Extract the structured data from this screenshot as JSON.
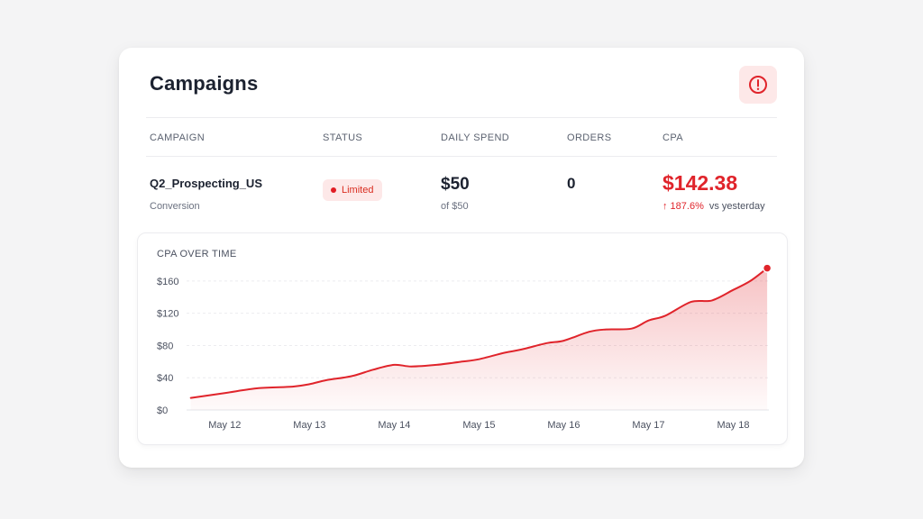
{
  "header": {
    "title": "Campaigns",
    "alert_icon": "alert-circle-icon",
    "alert_color": "#e0242b"
  },
  "table": {
    "columns": [
      "CAMPAIGN",
      "STATUS",
      "DAILY SPEND",
      "ORDERS",
      "CPA"
    ],
    "row": {
      "campaign_name": "Q2_Prospecting_US",
      "campaign_type": "Conversion",
      "status": "Limited",
      "daily_spend": "$50",
      "daily_spend_sub": "of $50",
      "orders": "0",
      "cpa": "$142.38",
      "cpa_change": "↑ 187.6%",
      "cpa_change_label": "vs yesterday"
    }
  },
  "colors": {
    "accent": "#e0242b",
    "badge_bg": "#fde8e8"
  },
  "chart_data": {
    "type": "area",
    "title": "CPA OVER TIME",
    "xlabel": "",
    "ylabel": "",
    "x_ticks": [
      "May 12",
      "May 13",
      "May 14",
      "May 15",
      "May 16",
      "May 17",
      "May 18"
    ],
    "y_ticks": [
      "$0",
      "$40",
      "$80",
      "$120",
      "$160"
    ],
    "ylim": [
      0,
      180
    ],
    "grid": true,
    "series": [
      {
        "values": [
          {
            "x": 11.6,
            "y": 15
          },
          {
            "x": 12.0,
            "y": 21
          },
          {
            "x": 12.4,
            "y": 27
          },
          {
            "x": 12.8,
            "y": 29
          },
          {
            "x": 13.0,
            "y": 32
          },
          {
            "x": 13.2,
            "y": 37
          },
          {
            "x": 13.5,
            "y": 42
          },
          {
            "x": 13.75,
            "y": 50
          },
          {
            "x": 14.0,
            "y": 56
          },
          {
            "x": 14.2,
            "y": 54
          },
          {
            "x": 14.5,
            "y": 56
          },
          {
            "x": 14.8,
            "y": 60
          },
          {
            "x": 15.0,
            "y": 63
          },
          {
            "x": 15.3,
            "y": 71
          },
          {
            "x": 15.5,
            "y": 75
          },
          {
            "x": 15.8,
            "y": 83
          },
          {
            "x": 16.0,
            "y": 86
          },
          {
            "x": 16.3,
            "y": 97
          },
          {
            "x": 16.5,
            "y": 100
          },
          {
            "x": 16.8,
            "y": 101
          },
          {
            "x": 17.0,
            "y": 111
          },
          {
            "x": 17.2,
            "y": 117
          },
          {
            "x": 17.5,
            "y": 134
          },
          {
            "x": 17.75,
            "y": 136
          },
          {
            "x": 18.0,
            "y": 149
          },
          {
            "x": 18.2,
            "y": 160
          },
          {
            "x": 18.4,
            "y": 176
          }
        ]
      }
    ]
  }
}
